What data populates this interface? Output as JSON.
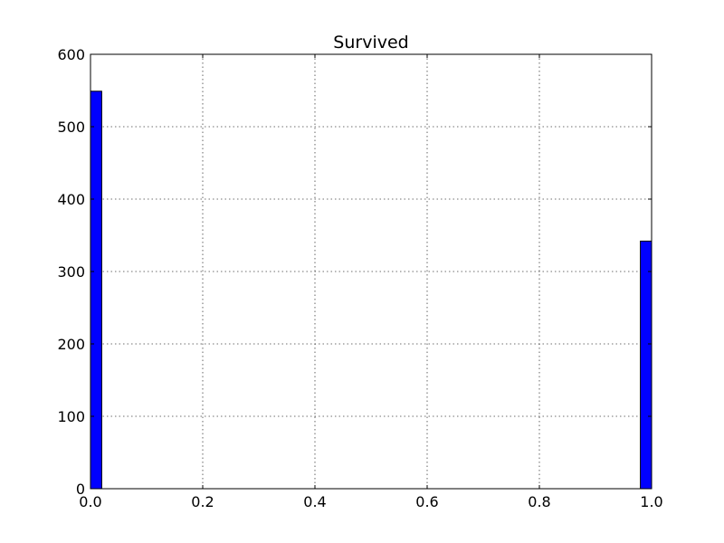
{
  "chart_data": {
    "type": "bar",
    "title": "Survived",
    "xlabel": "",
    "ylabel": "",
    "xlim": [
      0.0,
      1.0
    ],
    "ylim": [
      0,
      600
    ],
    "grid": true,
    "legend": "none",
    "x_ticks": [
      "0.0",
      "0.2",
      "0.4",
      "0.6",
      "0.8",
      "1.0"
    ],
    "y_ticks": [
      "0",
      "100",
      "200",
      "300",
      "400",
      "500",
      "600"
    ],
    "bins": [
      {
        "x0": 0.0,
        "x1": 0.02,
        "value": 549
      },
      {
        "x0": 0.98,
        "x1": 1.0,
        "value": 342
      }
    ],
    "bar_color": "#0000ff"
  }
}
